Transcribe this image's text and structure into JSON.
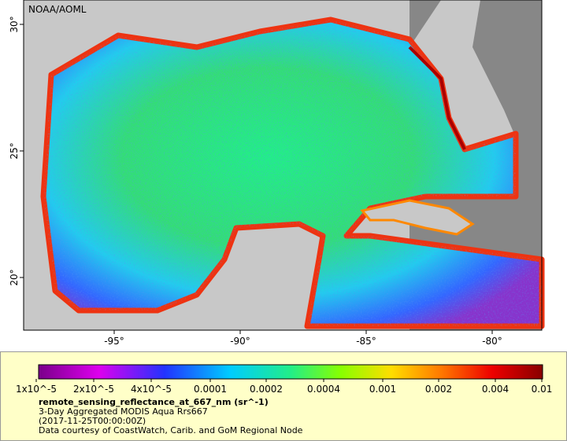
{
  "map": {
    "attribution": "NOAA/AOML",
    "lon_ticks": [
      "-95°",
      "-90°",
      "-85°",
      "-80°"
    ],
    "lat_ticks": [
      "30°",
      "25°",
      "20°"
    ]
  },
  "legend": {
    "colorbar_labels": [
      "1x10^-5",
      "2x10^-5",
      "4x10^-5",
      "0.0001",
      "0.0002",
      "0.0004",
      "0.001",
      "0.002",
      "0.004",
      "0.01"
    ],
    "variable": "remote_sensing_reflectance_at_667_nm (sr^-1)",
    "product": "3-Day Aggregated MODIS Aqua Rrs667",
    "date": "(2017-11-25T00:00:00Z)",
    "credit": "Data courtesy of CoastWatch, Carib. and GoM Regional Node"
  }
}
